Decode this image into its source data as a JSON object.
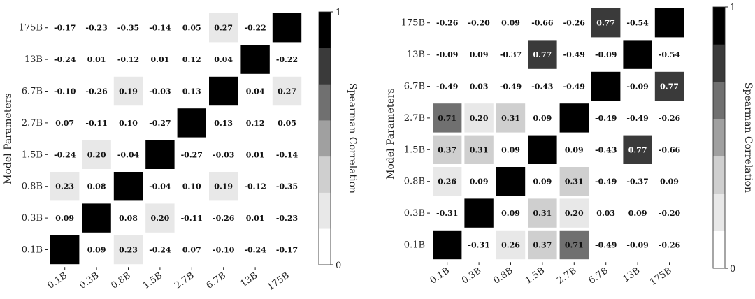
{
  "chart_data": [
    {
      "type": "heatmap",
      "title": "",
      "ylabel": "Model Parameters",
      "colorbar_label": "Spearman Correlation",
      "colorbar_ticks": [
        "0",
        "1"
      ],
      "colorbar_range": [
        0,
        1
      ],
      "color_levels": 7,
      "x_categories": [
        "0.1B",
        "0.3B",
        "0.8B",
        "1.5B",
        "2.7B",
        "6.7B",
        "13B",
        "175B"
      ],
      "y_categories": [
        "175B",
        "13B",
        "6.7B",
        "2.7B",
        "1.5B",
        "0.8B",
        "0.3B",
        "0.1B"
      ],
      "values": [
        [
          -0.17,
          -0.23,
          -0.35,
          -0.14,
          0.05,
          0.27,
          -0.22,
          null
        ],
        [
          -0.24,
          0.01,
          -0.12,
          0.01,
          0.12,
          0.04,
          null,
          -0.22
        ],
        [
          -0.1,
          -0.26,
          0.19,
          -0.03,
          0.13,
          null,
          0.04,
          0.27
        ],
        [
          0.07,
          -0.11,
          0.1,
          -0.27,
          null,
          0.13,
          0.12,
          0.05
        ],
        [
          -0.24,
          0.2,
          -0.04,
          null,
          -0.27,
          -0.03,
          0.01,
          -0.14
        ],
        [
          0.23,
          0.08,
          null,
          -0.04,
          0.1,
          0.19,
          -0.12,
          -0.35
        ],
        [
          0.09,
          null,
          0.08,
          0.2,
          -0.11,
          -0.26,
          0.01,
          -0.23
        ],
        [
          null,
          0.09,
          0.23,
          -0.24,
          0.07,
          -0.1,
          -0.24,
          -0.17
        ]
      ],
      "diagonal_value": 1
    },
    {
      "type": "heatmap",
      "title": "",
      "ylabel": "Model Parameters",
      "colorbar_label": "Spearman Correlation",
      "colorbar_ticks": [
        "0",
        "1"
      ],
      "colorbar_range": [
        0,
        1
      ],
      "color_levels": 7,
      "x_categories": [
        "0.1B",
        "0.3B",
        "0.8B",
        "1.5B",
        "2.7B",
        "6.7B",
        "13B",
        "175B"
      ],
      "y_categories": [
        "175B",
        "13B",
        "6.7B",
        "2.7B",
        "1.5B",
        "0.8B",
        "0.3B",
        "0.1B"
      ],
      "values": [
        [
          -0.26,
          -0.2,
          0.09,
          -0.66,
          -0.26,
          0.77,
          -0.54,
          null
        ],
        [
          -0.09,
          0.09,
          -0.37,
          0.77,
          -0.49,
          -0.09,
          null,
          -0.54
        ],
        [
          -0.49,
          0.03,
          -0.49,
          -0.43,
          -0.49,
          null,
          -0.09,
          0.77
        ],
        [
          0.71,
          0.2,
          0.31,
          0.09,
          null,
          -0.49,
          -0.49,
          -0.26
        ],
        [
          0.37,
          0.31,
          0.09,
          null,
          0.09,
          -0.43,
          0.77,
          -0.66
        ],
        [
          0.26,
          0.09,
          null,
          0.09,
          0.31,
          -0.49,
          -0.37,
          0.09
        ],
        [
          -0.31,
          null,
          0.09,
          0.31,
          0.2,
          0.03,
          0.09,
          -0.2
        ],
        [
          null,
          -0.31,
          0.26,
          0.37,
          0.71,
          -0.49,
          -0.09,
          -0.26
        ]
      ],
      "diagonal_value": 1
    }
  ]
}
